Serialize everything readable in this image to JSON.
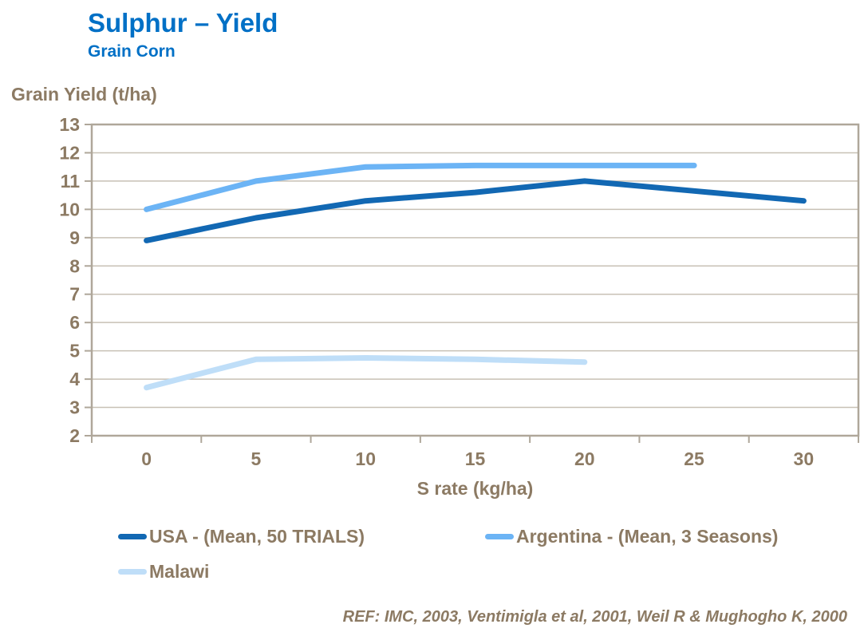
{
  "header": {
    "title": "Sulphur – Yield",
    "subtitle": "Grain Corn"
  },
  "chart_data": {
    "type": "line",
    "x_categories": [
      "0",
      "5",
      "10",
      "15",
      "20",
      "25",
      "30"
    ],
    "xlabel": "S rate (kg/ha)",
    "ylabel": "Grain Yield (t/ha)",
    "ylim": [
      2,
      13
    ],
    "yticks": [
      2,
      3,
      4,
      5,
      6,
      7,
      8,
      9,
      10,
      11,
      12,
      13
    ],
    "grid": true,
    "legend_position": "bottom",
    "series": [
      {
        "name": "USA - (Mean, 50 TRIALS)",
        "color": "#1268B3",
        "x": [
          0,
          5,
          10,
          15,
          20,
          25,
          30
        ],
        "values": [
          8.9,
          9.7,
          10.3,
          10.6,
          11.0,
          10.65,
          10.3
        ]
      },
      {
        "name": "Argentina - (Mean, 3 Seasons)",
        "color": "#6CB4F5",
        "x": [
          0,
          5,
          10,
          15,
          20,
          25
        ],
        "values": [
          10.0,
          11.0,
          11.5,
          11.55,
          11.55,
          11.55
        ]
      },
      {
        "name": "Malawi",
        "color": "#BFDEF8",
        "x": [
          0,
          5,
          10,
          15,
          20
        ],
        "values": [
          3.7,
          4.7,
          4.75,
          4.7,
          4.6
        ]
      }
    ]
  },
  "footer": {
    "reference": "REF: IMC, 2003, Ventimigla et al, 2001, Weil R & Mughogho K, 2000"
  },
  "colors": {
    "title_blue": "#0070C6",
    "axis_text": "#8C7A63",
    "axis_line": "#AFA79A",
    "gridline": "#C8C1B5",
    "background": "#FFFFFF"
  }
}
